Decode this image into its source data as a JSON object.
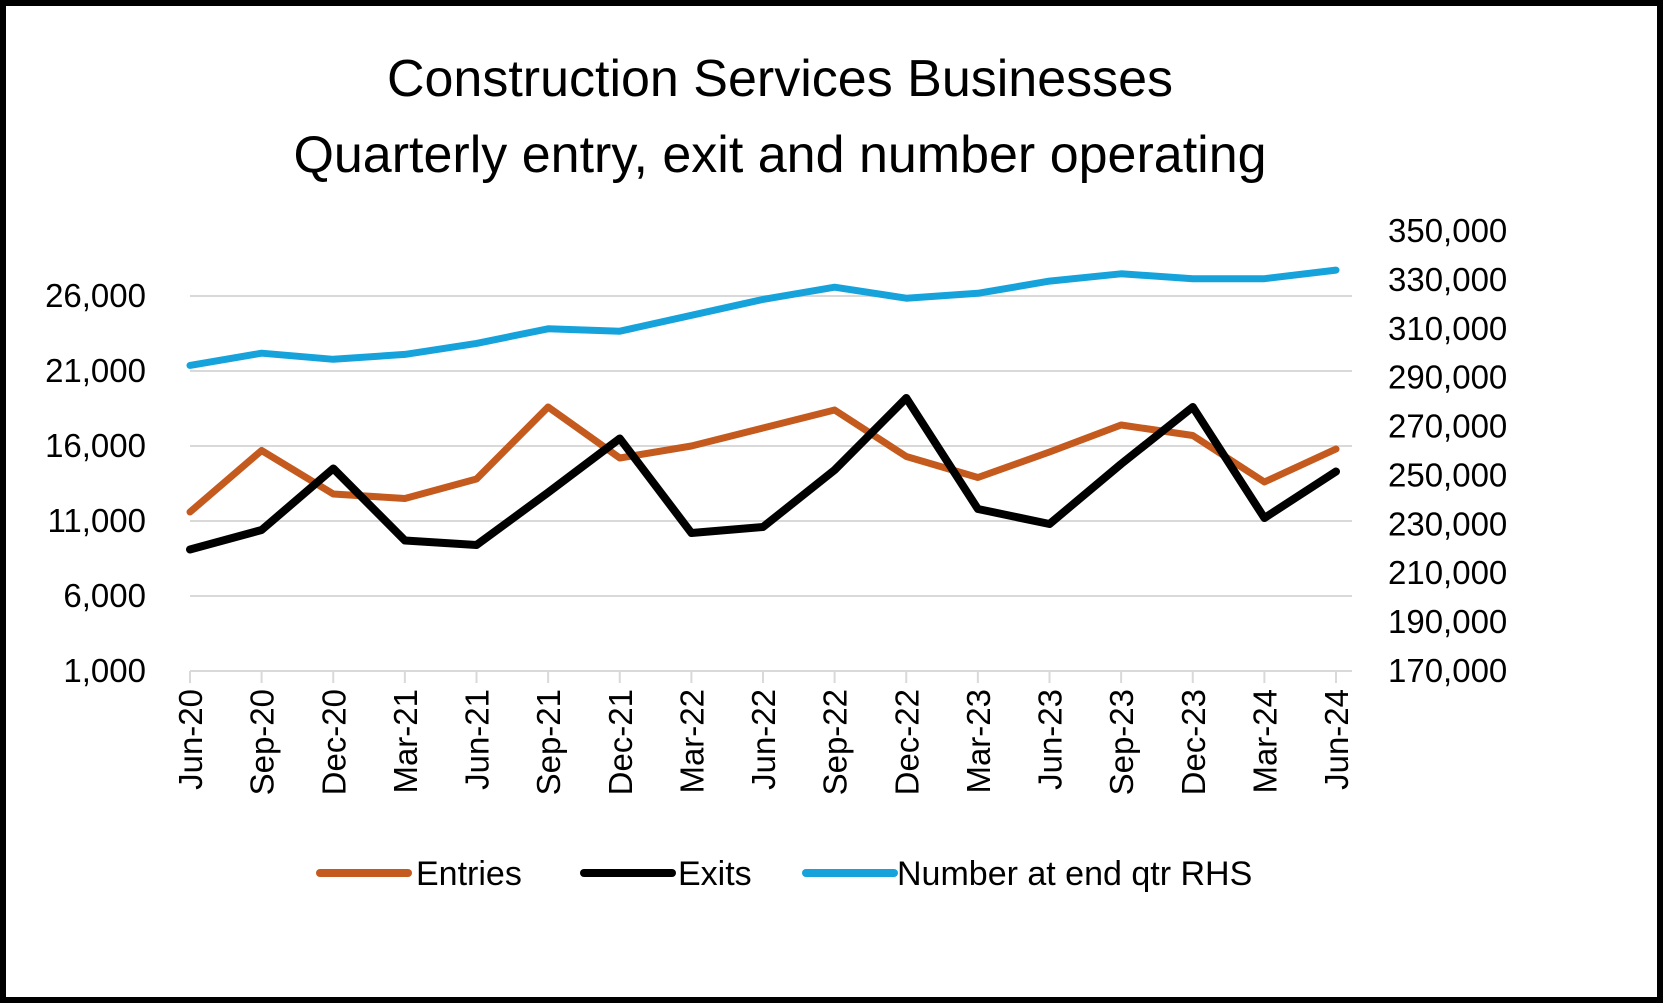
{
  "chart_data": {
    "type": "line",
    "title": "Construction Services Businesses",
    "subtitle": "Quarterly entry, exit and number operating",
    "categories": [
      "Jun-20",
      "Sep-20",
      "Dec-20",
      "Mar-21",
      "Jun-21",
      "Sep-21",
      "Dec-21",
      "Mar-22",
      "Jun-22",
      "Sep-22",
      "Dec-22",
      "Mar-23",
      "Jun-23",
      "Sep-23",
      "Dec-23",
      "Mar-24",
      "Jun-24"
    ],
    "y_left": {
      "ylim": [
        1000,
        26000
      ],
      "ticks": [
        1000,
        6000,
        11000,
        16000,
        21000,
        26000
      ],
      "tick_labels": [
        "1,000",
        "6,000",
        "11,000",
        "16,000",
        "21,000",
        "26,000"
      ]
    },
    "y_right": {
      "ylim": [
        170000,
        350000
      ],
      "ticks": [
        170000,
        190000,
        210000,
        230000,
        250000,
        270000,
        290000,
        310000,
        330000,
        350000
      ],
      "tick_labels": [
        "170,000",
        "190,000",
        "210,000",
        "230,000",
        "250,000",
        "270,000",
        "290,000",
        "310,000",
        "330,000",
        "350,000"
      ]
    },
    "series": [
      {
        "name": "Entries",
        "axis": "left",
        "color": "#c55a1e",
        "values": [
          11600,
          15700,
          12800,
          12500,
          13800,
          18600,
          15200,
          16000,
          17200,
          18400,
          15300,
          13900,
          15600,
          17400,
          16700,
          13600,
          15800
        ]
      },
      {
        "name": "Exits",
        "axis": "left",
        "color": "#000000",
        "values": [
          9100,
          10400,
          14500,
          9700,
          9400,
          12900,
          16500,
          10200,
          10600,
          14400,
          19200,
          11800,
          10800,
          14800,
          18600,
          11200,
          14300
        ]
      },
      {
        "name": "Number at end qtr RHS",
        "axis": "right",
        "color": "#16a3db",
        "values": [
          295000,
          300000,
          297500,
          299500,
          304000,
          310000,
          309000,
          315500,
          322000,
          327000,
          322500,
          324500,
          329500,
          332500,
          330500,
          330500,
          334000
        ]
      }
    ],
    "grid": true,
    "legend_position": "bottom"
  }
}
